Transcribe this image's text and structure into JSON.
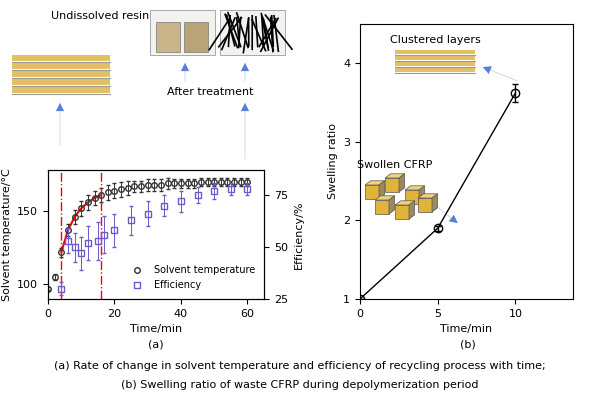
{
  "chart_data": [
    {
      "type": "scatter",
      "label": "(a)",
      "x_label": "Time/min",
      "y_label": "Solvent temperature/°C",
      "y2_label": "Efficiency/%",
      "xlim": [
        0,
        65
      ],
      "xticks": [
        0,
        20,
        40,
        60
      ],
      "ylim": [
        90,
        178
      ],
      "yticks": [
        100,
        150
      ],
      "y2lim": [
        25,
        87
      ],
      "y2ticks": [
        25,
        50,
        75
      ],
      "legend": "lower right",
      "highlight_x": [
        4,
        16
      ],
      "annotations": [
        "Undissolved resin",
        "After treatment"
      ],
      "series": [
        {
          "name": "Solvent temperature",
          "color": "#333333",
          "marker": "circle",
          "x": [
            0,
            2,
            4,
            6,
            8,
            10,
            12,
            14,
            16,
            18,
            20,
            22,
            24,
            26,
            28,
            30,
            32,
            34,
            36,
            38,
            40,
            42,
            44,
            46,
            48,
            50,
            52,
            54,
            56,
            58,
            60
          ],
          "values": [
            97,
            105,
            122,
            137,
            146,
            152,
            156,
            159,
            161,
            163,
            164,
            165,
            166,
            167,
            167,
            168,
            168,
            168,
            169,
            169,
            169,
            169,
            169,
            170,
            170,
            170,
            170,
            170,
            170,
            170,
            170
          ],
          "errors": [
            1,
            2,
            3,
            4,
            5,
            5,
            5,
            5,
            5,
            5,
            5,
            5,
            5,
            4,
            4,
            4,
            4,
            4,
            4,
            3,
            3,
            3,
            3,
            3,
            3,
            3,
            3,
            3,
            3,
            3,
            3
          ]
        },
        {
          "name": "Efficiency",
          "color": "#6a5acd",
          "marker": "square",
          "axis": "y2",
          "x": [
            4,
            6,
            8,
            10,
            12,
            15,
            17,
            20,
            25,
            30,
            35,
            40,
            45,
            50,
            55,
            60
          ],
          "values": [
            30,
            53,
            50,
            47,
            52,
            53,
            56,
            58,
            63,
            66,
            70,
            72,
            75,
            77,
            78,
            78
          ],
          "errors": [
            3,
            6,
            7,
            8,
            8,
            9,
            9,
            8,
            7,
            6,
            5,
            5,
            4,
            4,
            3,
            3
          ]
        }
      ]
    },
    {
      "type": "line",
      "label": "(b)",
      "x_label": "Time/min",
      "y_label": "Swelling ratio",
      "xlim": [
        0,
        13.7
      ],
      "xticks": [
        0,
        5,
        10
      ],
      "ylim": [
        1,
        4.5
      ],
      "yticks": [
        1,
        2,
        3,
        4
      ],
      "annotations": [
        "Clustered layers",
        "Swollen CFRP"
      ],
      "series": [
        {
          "name": "Swelling ratio",
          "color": "#000000",
          "marker": "circle",
          "x": [
            0,
            5,
            10
          ],
          "values": [
            1.0,
            1.9,
            3.62
          ],
          "errors": [
            0,
            0.03,
            0.12
          ]
        }
      ]
    }
  ],
  "captions": [
    "(a) Rate of change in solvent temperature and efficiency of recycling process with time;",
    "(b) Swelling ratio of waste CFRP during depolymerization period"
  ]
}
